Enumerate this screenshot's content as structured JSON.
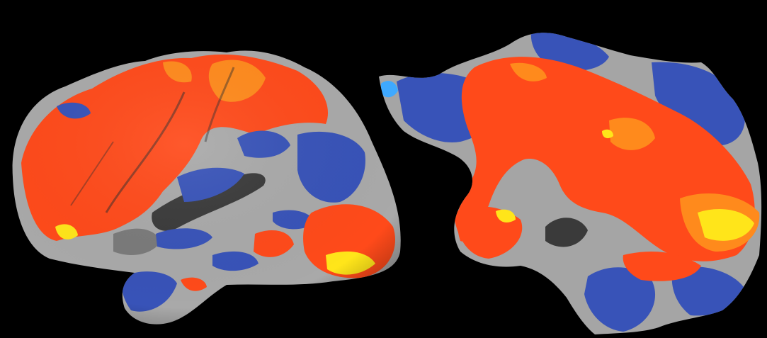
{
  "figure": {
    "background_color": "#000000",
    "panels": [
      {
        "view": "inflated-lateral-hemisphere",
        "surface_colors": {
          "gyral_gray": "#a9a9a9",
          "sulcal_gray": "#3a3a3a"
        }
      },
      {
        "view": "flattened-cortical-map",
        "surface_colors": {
          "gyral_gray": "#a5a5a5",
          "sulcal_gray": "#3a3a3a"
        }
      }
    ],
    "colormap": {
      "positive_low": "#ff4a1a",
      "positive_mid": "#ff8a1c",
      "positive_high": "#ffe51a",
      "negative_low": "#3853b8",
      "negative_high": "#3fa9ff"
    }
  }
}
